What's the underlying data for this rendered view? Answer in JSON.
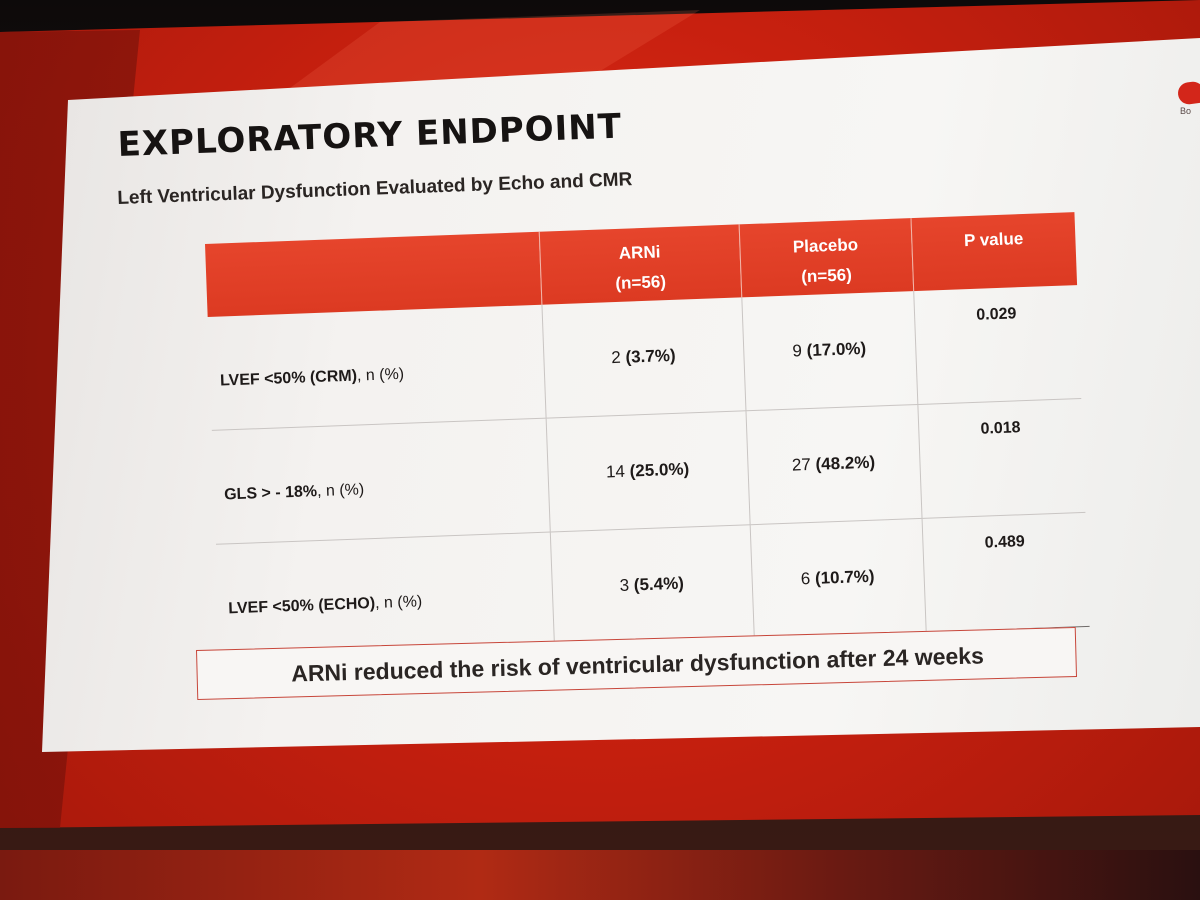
{
  "slide": {
    "title": "EXPLORATORY ENDPOINT",
    "subtitle": "Left Ventricular Dysfunction Evaluated by Echo and CMR",
    "logo_text": "Bo",
    "logo_mark": "heart-logo"
  },
  "table": {
    "headers": [
      {
        "line1": "",
        "line2": ""
      },
      {
        "line1": "ARNi",
        "line2": "(n=56)"
      },
      {
        "line1": "Placebo",
        "line2": "(n=56)"
      },
      {
        "line1": "P value",
        "line2": ""
      }
    ],
    "rows": [
      {
        "label_bold": "LVEF <50% (CRM)",
        "label_rest": ", n (%)",
        "arni_n": "2",
        "arni_pct": "(3.7%)",
        "placebo_n": "9",
        "placebo_pct": "(17.0%)",
        "p": "0.029"
      },
      {
        "label_bold": "GLS > - 18%",
        "label_rest": ", n (%)",
        "arni_n": "14",
        "arni_pct": "(25.0%)",
        "placebo_n": "27",
        "placebo_pct": "(48.2%)",
        "p": "0.018"
      },
      {
        "label_bold": "LVEF <50% (ECHO)",
        "label_rest": ", n (%)",
        "arni_n": "3",
        "arni_pct": "(5.4%)",
        "placebo_n": "6",
        "placebo_pct": "(10.7%)",
        "p": "0.489"
      }
    ]
  },
  "conclusion": "ARNi reduced the risk of ventricular dysfunction after 24 weeks",
  "colors": {
    "header_red": "#e6452c",
    "screen_red": "#c8200f",
    "slide_white": "#f4f2f0",
    "conclusion_border": "#c7463a"
  }
}
